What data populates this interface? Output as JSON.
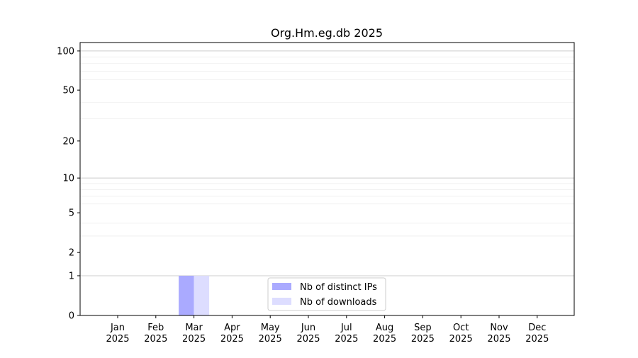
{
  "chart_data": {
    "type": "bar",
    "title": "Org.Hm.eg.db 2025",
    "xlabel": "",
    "ylabel": "",
    "yscale": "log(1+y)",
    "ylim": [
      0,
      116
    ],
    "yticks": [
      0,
      1,
      2,
      5,
      10,
      20,
      50,
      100
    ],
    "ytick_labels": [
      "0",
      "1",
      "2",
      "5",
      "10",
      "20",
      "50",
      "100"
    ],
    "minor_grid": [
      3,
      4,
      6,
      7,
      8,
      9,
      30,
      40,
      60,
      70,
      80,
      90
    ],
    "major_grid": [
      1,
      10,
      100
    ],
    "grid": true,
    "categories": [
      "Jan\n2025",
      "Feb\n2025",
      "Mar\n2025",
      "Apr\n2025",
      "May\n2025",
      "Jun\n2025",
      "Jul\n2025",
      "Aug\n2025",
      "Sep\n2025",
      "Oct\n2025",
      "Nov\n2025",
      "Dec\n2025"
    ],
    "series": [
      {
        "name": "Nb of distinct IPs",
        "color": "#aaaaff",
        "values": [
          0,
          0,
          1,
          0,
          0,
          0,
          0,
          0,
          0,
          0,
          0,
          0
        ]
      },
      {
        "name": "Nb of downloads",
        "color": "#ddddff",
        "values": [
          0,
          0,
          1,
          0,
          0,
          0,
          0,
          0,
          0,
          0,
          0,
          0
        ]
      }
    ],
    "legend_placement": "lower-center"
  }
}
